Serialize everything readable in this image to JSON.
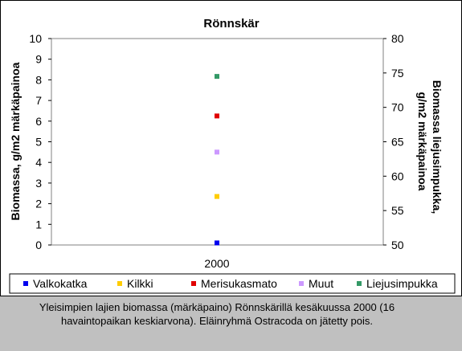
{
  "chart_data": {
    "type": "scatter",
    "title": "Rönnskär",
    "ylabel": "Biomassa, g/m2 märkäpainoa",
    "y2label_line1": "Biomassa liejusimpukka,",
    "y2label_line2": "g/m2 märkäpainoa",
    "categories": [
      "2000"
    ],
    "ylim": [
      0,
      10
    ],
    "y2lim": [
      50,
      80
    ],
    "yticks": [
      "0",
      "1",
      "2",
      "3",
      "4",
      "5",
      "6",
      "7",
      "8",
      "9",
      "10"
    ],
    "y2ticks": [
      "50",
      "55",
      "60",
      "65",
      "70",
      "75",
      "80"
    ],
    "legend_position": "bottom",
    "series": [
      {
        "name": "Valkokatka",
        "axis": "left",
        "values": [
          0.1
        ],
        "color": "#0000ee"
      },
      {
        "name": "Kilkki",
        "axis": "left",
        "values": [
          2.35
        ],
        "color": "#ffcc00"
      },
      {
        "name": "Merisukasmato",
        "axis": "left",
        "values": [
          6.25
        ],
        "color": "#e00000"
      },
      {
        "name": "Muut",
        "axis": "left",
        "values": [
          4.5
        ],
        "color": "#cc99ff"
      },
      {
        "name": "Liejusimpukka",
        "axis": "right",
        "values": [
          74.5
        ],
        "color": "#339966"
      }
    ]
  },
  "caption": "Yleisimpien lajien biomassa (märkäpaino) Rönnskärillä kesäkuussa 2000 (16 havaintopaikan keskiarvona). Eläinryhmä Ostracoda on jätetty pois."
}
